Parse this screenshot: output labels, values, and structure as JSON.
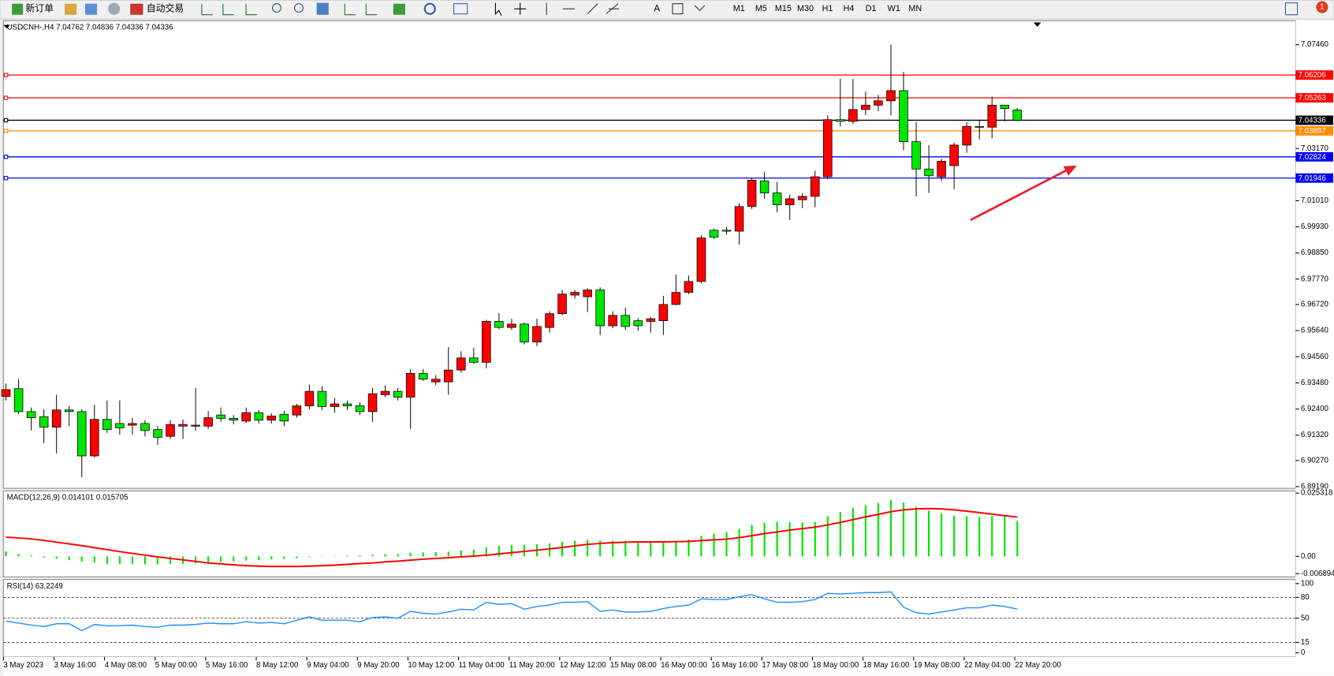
{
  "toolbar": {
    "new_order": "新订单",
    "auto_trading": "自动交易",
    "timeframes": [
      "M1",
      "M5",
      "M15",
      "M30",
      "H1",
      "H4",
      "D1",
      "W1",
      "MN"
    ],
    "notifications": "1"
  },
  "chart_data": [
    {
      "type": "candlestick",
      "title": "USDCNH-,H4  7.04762 7.04836 7.04336 7.04336",
      "categories": [
        "3 May 2023",
        null,
        null,
        null,
        "3 May 16:00",
        null,
        null,
        null,
        "4 May 08:00",
        null,
        null,
        null,
        "5 May 00:00",
        null,
        null,
        null,
        "5 May 16:00",
        null,
        null,
        null,
        "8 May 12:00",
        null,
        null,
        null,
        "9 May 04:00",
        null,
        null,
        null,
        "9 May 20:00",
        null,
        null,
        null,
        "10 May 12:00",
        null,
        null,
        null,
        "11 May 04:00",
        null,
        null,
        null,
        "11 May 20:00",
        null,
        null,
        null,
        "12 May 12:00",
        null,
        null,
        null,
        "15 May 08:00",
        null,
        null,
        null,
        "16 May 00:00",
        null,
        null,
        null,
        "16 May 16:00",
        null,
        null,
        null,
        "17 May 08:00",
        null,
        null,
        null,
        "18 May 00:00",
        null,
        null,
        null,
        "18 May 16:00",
        null,
        null,
        null,
        "19 May 08:00",
        null,
        null,
        null,
        "22 May 04:00",
        null,
        null,
        null,
        "22 May 20:00"
      ],
      "open": [
        6.9292,
        6.9324,
        6.9229,
        6.9208,
        6.9165,
        6.9236,
        6.9229,
        6.9046,
        6.9197,
        6.918,
        6.9173,
        6.918,
        6.9155,
        6.9127,
        6.9169,
        6.9169,
        6.9169,
        6.9215,
        6.9201,
        6.919,
        6.9225,
        6.9194,
        6.9218,
        6.9215,
        6.9253,
        6.9313,
        6.925,
        6.9261,
        6.9253,
        6.9229,
        6.9299,
        6.9313,
        6.9289,
        6.9387,
        6.9352,
        6.9352,
        6.9401,
        6.9451,
        6.9433,
        6.9602,
        6.9577,
        6.9591,
        6.9517,
        6.9577,
        6.9634,
        6.9711,
        6.9704,
        6.9732,
        6.9584,
        6.9627,
        6.9605,
        6.9602,
        6.9605,
        6.9672,
        6.9722,
        6.9767,
        6.9979,
        6.9979,
        6.9975,
        7.0077,
        7.0183,
        7.0133,
        7.0084,
        7.0105,
        7.0119,
        7.02,
        7.0436,
        7.0429,
        7.0478,
        7.0496,
        7.0514,
        7.0556,
        7.0345,
        7.0232,
        7.02,
        7.0246,
        7.0331,
        7.0408,
        7.0405,
        7.0496,
        7.04762
      ],
      "high": [
        6.9345,
        6.9363,
        6.9246,
        6.9239,
        6.9299,
        6.9253,
        6.9239,
        6.9257,
        6.9275,
        6.9275,
        6.9204,
        6.9194,
        6.9169,
        6.9194,
        6.9197,
        6.9327,
        6.9232,
        6.9246,
        6.9215,
        6.9246,
        6.9236,
        6.9222,
        6.9232,
        6.9261,
        6.9341,
        6.9334,
        6.9285,
        6.9275,
        6.9268,
        6.9327,
        6.9338,
        6.9327,
        6.9405,
        6.9405,
        6.938,
        6.9496,
        6.9479,
        6.9493,
        6.9609,
        6.9637,
        6.9613,
        6.9598,
        6.9613,
        6.9644,
        6.9732,
        6.9732,
        6.9739,
        6.9743,
        6.9644,
        6.9658,
        6.9616,
        6.962,
        6.9708,
        6.9796,
        6.9792,
        6.9958,
        6.9986,
        6.9993,
        7.0091,
        7.0197,
        7.0221,
        7.0179,
        7.0126,
        7.0133,
        7.0225,
        7.0454,
        7.0605,
        7.0605,
        7.0552,
        7.0538,
        7.0746,
        7.0633,
        7.0426,
        7.0331,
        7.0274,
        7.0341,
        7.0426,
        7.0436,
        7.0531,
        7.0496,
        7.04836
      ],
      "low": [
        6.9275,
        6.9218,
        6.9151,
        6.9099,
        6.9056,
        6.9169,
        6.8958,
        6.9039,
        6.9141,
        6.9134,
        6.9134,
        6.9127,
        6.9092,
        6.9116,
        6.9116,
        6.9151,
        6.9158,
        6.9187,
        6.9176,
        6.9183,
        6.918,
        6.918,
        6.9169,
        6.9204,
        6.9239,
        6.9236,
        6.9225,
        6.9236,
        6.9215,
        6.9187,
        6.9289,
        6.9275,
        6.9158,
        6.9356,
        6.9338,
        6.9299,
        6.9391,
        6.9426,
        6.9408,
        6.957,
        6.9567,
        6.9507,
        6.95,
        6.9556,
        6.9627,
        6.9697,
        6.9641,
        6.9546,
        6.9574,
        6.9567,
        6.9563,
        6.9556,
        6.9546,
        6.9669,
        6.9715,
        6.976,
        6.9943,
        6.9961,
        6.9919,
        7.0067,
        7.0109,
        7.0053,
        7.0021,
        7.007,
        7.0074,
        7.019,
        7.0408,
        7.0419,
        7.0454,
        7.0471,
        7.0454,
        7.031,
        7.0119,
        7.0133,
        7.0183,
        7.0148,
        7.0299,
        7.0355,
        7.0359,
        7.0429,
        7.04336
      ],
      "close": [
        6.932,
        6.9229,
        6.9204,
        6.9165,
        6.9236,
        6.9229,
        6.9046,
        6.9197,
        6.9155,
        6.9162,
        6.918,
        6.9151,
        6.9123,
        6.9176,
        6.9176,
        6.9173,
        6.9204,
        6.9201,
        6.9194,
        6.9225,
        6.9194,
        6.9211,
        6.919,
        6.9253,
        6.9313,
        6.925,
        6.9261,
        6.9253,
        6.9229,
        6.9303,
        6.9313,
        6.9289,
        6.9387,
        6.9363,
        6.9363,
        6.9401,
        6.9451,
        6.9433,
        6.9602,
        6.9577,
        6.9591,
        6.9517,
        6.9581,
        6.9634,
        6.9715,
        6.9722,
        6.9732,
        6.9584,
        6.9627,
        6.9581,
        6.9584,
        6.9613,
        6.9672,
        6.9722,
        6.9767,
        6.9947,
        6.995,
        6.9975,
        7.0077,
        7.0186,
        7.0133,
        7.0084,
        7.0109,
        7.0119,
        7.02,
        7.0436,
        7.0429,
        7.0478,
        7.0496,
        7.0514,
        7.0556,
        7.0345,
        7.0232,
        7.0204,
        7.0264,
        7.0331,
        7.0408,
        7.0405,
        7.0496,
        7.0482,
        7.04336
      ],
      "up_color": "#ff0000",
      "down_color": "#00e600",
      "ylim": [
        6.8912,
        7.0845
      ],
      "yticks": [
        {
          "value": 7.0746,
          "label": "7.07460"
        },
        {
          "value": 7.0317,
          "label": "7.03170"
        },
        {
          "value": 7.0101,
          "label": "7.01010"
        },
        {
          "value": 6.9993,
          "label": "6.99930"
        },
        {
          "value": 6.9885,
          "label": "6.98850"
        },
        {
          "value": 6.9777,
          "label": "6.97770"
        },
        {
          "value": 6.9672,
          "label": "6.96720"
        },
        {
          "value": 6.9564,
          "label": "6.95640"
        },
        {
          "value": 6.9456,
          "label": "6.94560"
        },
        {
          "value": 6.9348,
          "label": "6.93480"
        },
        {
          "value": 6.924,
          "label": "6.92400"
        },
        {
          "value": 6.9132,
          "label": "6.91320"
        },
        {
          "value": 6.9027,
          "label": "6.90270"
        },
        {
          "value": 6.8919,
          "label": "6.89190"
        }
      ],
      "hlines": [
        {
          "value": 7.06206,
          "color": "#ff0000"
        },
        {
          "value": 7.05263,
          "color": "#ff0000"
        },
        {
          "value": 7.04336,
          "color": "#000000"
        },
        {
          "value": 7.03897,
          "color": "#ff8c00"
        },
        {
          "value": 7.02824,
          "color": "#0000ff"
        },
        {
          "value": 7.01946,
          "color": "#0000ff"
        }
      ]
    },
    {
      "type": "macd",
      "title": "MACD(12,26,9) 0.014101 0.015705",
      "histogram": {
        "color": "#00e600",
        "values": [
          0.002,
          0.001,
          0.0005,
          -0.0005,
          -0.001,
          -0.0015,
          -0.002,
          -0.0025,
          -0.003,
          -0.003,
          -0.003,
          -0.0032,
          -0.0032,
          -0.003,
          -0.003,
          -0.0028,
          -0.0025,
          -0.0022,
          -0.002,
          -0.0017,
          -0.0015,
          -0.0012,
          -0.001,
          -0.0007,
          -0.0003,
          0,
          0.0002,
          0.0004,
          0.0005,
          0.0007,
          0.0009,
          0.001,
          0.0014,
          0.0016,
          0.0017,
          0.0019,
          0.0024,
          0.0028,
          0.0036,
          0.0042,
          0.0046,
          0.0047,
          0.0049,
          0.0052,
          0.0058,
          0.0062,
          0.0066,
          0.0064,
          0.0063,
          0.0061,
          0.0059,
          0.0057,
          0.0058,
          0.0062,
          0.0068,
          0.0082,
          0.009,
          0.0097,
          0.011,
          0.0126,
          0.0135,
          0.0138,
          0.0137,
          0.0135,
          0.0138,
          0.016,
          0.0178,
          0.0194,
          0.0205,
          0.0213,
          0.0226,
          0.0216,
          0.0198,
          0.0183,
          0.0171,
          0.0163,
          0.0161,
          0.0158,
          0.0161,
          0.0159,
          0.014101
        ]
      },
      "signal": {
        "color": "#ff0000",
        "values": [
          0.0077,
          0.0074,
          0.007,
          0.0064,
          0.0057,
          0.005,
          0.0043,
          0.0035,
          0.0027,
          0.0019,
          0.0012,
          0.0005,
          -0.0002,
          -0.0008,
          -0.0014,
          -0.002,
          -0.0026,
          -0.003,
          -0.0034,
          -0.0037,
          -0.0039,
          -0.004,
          -0.004,
          -0.004,
          -0.0039,
          -0.0037,
          -0.0035,
          -0.0032,
          -0.0029,
          -0.0026,
          -0.0022,
          -0.0019,
          -0.0015,
          -0.0011,
          -0.0008,
          -0.0005,
          -0.0002,
          0.0001,
          0.0005,
          0.001,
          0.0015,
          0.002,
          0.0025,
          0.003,
          0.0036,
          0.0042,
          0.0048,
          0.0052,
          0.0055,
          0.0057,
          0.0058,
          0.0058,
          0.0058,
          0.0059,
          0.006,
          0.0063,
          0.0066,
          0.0069,
          0.0075,
          0.0083,
          0.0091,
          0.0098,
          0.0105,
          0.0111,
          0.0117,
          0.0126,
          0.0136,
          0.0147,
          0.0158,
          0.0168,
          0.0179,
          0.0186,
          0.019,
          0.0191,
          0.019,
          0.0186,
          0.0181,
          0.0175,
          0.0169,
          0.0163,
          0.015705
        ]
      },
      "ylim": [
        -0.0082,
        0.0262
      ],
      "yticks": [
        0.025318,
        {
          "value": 0,
          "label": "0.00"
        },
        -0.006894
      ]
    },
    {
      "type": "line",
      "title": "RSI(14) 63.2249",
      "color": "#1e90ff",
      "values": [
        46,
        43,
        40,
        38,
        42,
        42,
        32,
        41,
        39,
        39,
        40,
        38,
        37,
        40,
        40,
        41,
        43,
        42,
        42,
        45,
        43,
        44,
        42,
        47,
        52,
        47,
        47,
        47,
        45,
        51,
        52,
        50,
        60,
        57,
        56,
        59,
        63,
        62,
        73,
        70,
        71,
        63,
        67,
        69,
        73,
        73,
        74,
        60,
        62,
        59,
        59,
        60,
        64,
        67,
        69,
        78,
        77,
        77,
        81,
        84,
        78,
        73,
        73,
        74,
        77,
        86,
        85,
        86,
        87,
        87,
        88,
        66,
        58,
        56,
        59,
        62,
        65,
        65,
        69,
        67,
        63.2249
      ],
      "ylim": [
        -6,
        106
      ],
      "yticks": [
        100,
        80,
        50,
        15,
        0
      ],
      "levels": [
        80,
        50,
        15
      ]
    }
  ]
}
